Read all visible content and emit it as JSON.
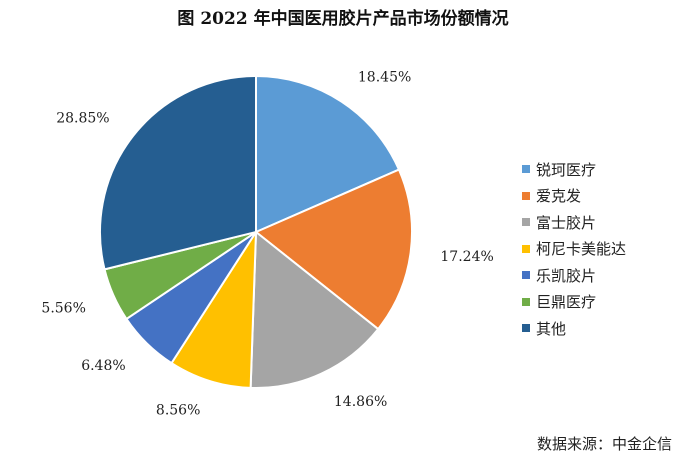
{
  "chart_data": {
    "type": "pie",
    "title": "图 2022 年中国医用胶片产品市场份额情况",
    "slices": [
      {
        "label": "锐珂医疗",
        "value": 18.45,
        "display": "18.45%",
        "color": "#5B9BD5"
      },
      {
        "label": "爱克发",
        "value": 17.24,
        "display": "17.24%",
        "color": "#ED7D31"
      },
      {
        "label": "富士胶片",
        "value": 14.86,
        "display": "14.86%",
        "color": "#A5A5A5"
      },
      {
        "label": "柯尼卡美能达",
        "value": 8.56,
        "display": "8.56%",
        "color": "#FFC000"
      },
      {
        "label": "乐凯胶片",
        "value": 6.48,
        "display": "6.48%",
        "color": "#4472C4"
      },
      {
        "label": "巨鼎医疗",
        "value": 5.56,
        "display": "5.56%",
        "color": "#70AD47"
      },
      {
        "label": "其他",
        "value": 28.85,
        "display": "28.85%",
        "color": "#255E91"
      }
    ],
    "legend_position": "right"
  },
  "source": "数据来源：中金企信"
}
